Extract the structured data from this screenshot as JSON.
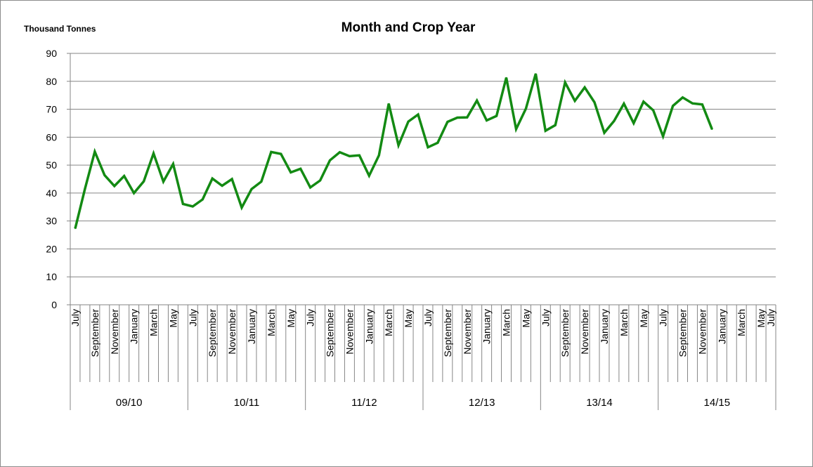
{
  "chart_data": {
    "type": "line",
    "title": "Month and Crop Year",
    "ylabel": "Thousand Tonnes",
    "ylim": [
      0,
      90
    ],
    "yticks": [
      "0",
      "10",
      "20",
      "30",
      "40",
      "50",
      "60",
      "70",
      "80",
      "90"
    ],
    "grid": true,
    "line_color": "#138a13",
    "month_labels": [
      "July",
      "September",
      "November",
      "January",
      "March",
      "May"
    ],
    "crop_years": [
      "09/10",
      "10/11",
      "11/12",
      "12/13",
      "13/14",
      "14/15"
    ],
    "series": [
      {
        "values": [
          27.3,
          41.5,
          54.8,
          46.4,
          42.5,
          46.1,
          40.0,
          44.2,
          54.2,
          44.1,
          50.4,
          36.1,
          35.2,
          37.7,
          45.2,
          42.6,
          45.0,
          34.8,
          41.4,
          44.1,
          54.7,
          54.0,
          47.4,
          48.7,
          42.0,
          44.5,
          51.7,
          54.6,
          53.2,
          53.5,
          46.2,
          53.5,
          72.0,
          57.1,
          65.6,
          68.1,
          56.4,
          58.0,
          65.5,
          67.0,
          67.1,
          73.1,
          66.0,
          67.6,
          81.3,
          62.9,
          70.2,
          82.7,
          62.3,
          64.3,
          79.6,
          73.0,
          77.8,
          72.5,
          61.6,
          65.8,
          72.0,
          65.0,
          72.7,
          69.6,
          60.3,
          71.2,
          74.2,
          72.1,
          71.7,
          62.8
        ]
      }
    ]
  }
}
